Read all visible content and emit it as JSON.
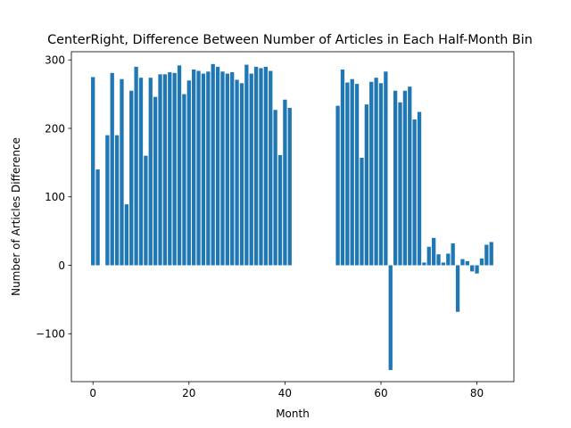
{
  "chart_data": {
    "type": "bar",
    "title": "CenterRight, Difference Between Number of Articles in Each Half-Month Bin",
    "xlabel": "Month",
    "ylabel": "Number of Articles Difference",
    "xlim": [
      -4.5,
      87.7
    ],
    "ylim": [
      -170,
      312
    ],
    "xticks": [
      0,
      20,
      40,
      60,
      80
    ],
    "yticks": [
      -100,
      0,
      100,
      200,
      300
    ],
    "ytick_labels": [
      "−100",
      "0",
      "100",
      "200",
      "300"
    ],
    "bar_color": "#1f77b4",
    "grid": false,
    "x": [
      0,
      1,
      3,
      4,
      5,
      6,
      7,
      8,
      9,
      10,
      11,
      12,
      13,
      14,
      15,
      16,
      17,
      18,
      19,
      20,
      21,
      22,
      23,
      24,
      25,
      26,
      27,
      28,
      29,
      30,
      31,
      32,
      33,
      34,
      35,
      36,
      37,
      38,
      39,
      40,
      41,
      51,
      52,
      53,
      54,
      55,
      56,
      57,
      58,
      59,
      60,
      61,
      62,
      63,
      64,
      65,
      66,
      67,
      68,
      69,
      70,
      71,
      72,
      73,
      74,
      75,
      76,
      77,
      78,
      79,
      80,
      81,
      82,
      83
    ],
    "values": [
      275,
      140,
      190,
      281,
      190,
      272,
      89,
      255,
      290,
      274,
      160,
      274,
      246,
      279,
      279,
      282,
      281,
      292,
      250,
      270,
      286,
      284,
      280,
      283,
      294,
      290,
      283,
      280,
      282,
      271,
      266,
      293,
      280,
      290,
      288,
      290,
      284,
      227,
      161,
      242,
      230,
      233,
      286,
      267,
      272,
      265,
      157,
      235,
      268,
      274,
      266,
      283,
      -153,
      255,
      238,
      255,
      261,
      213,
      224,
      4,
      27,
      40,
      16,
      4,
      17,
      32,
      -68,
      9,
      6,
      -9,
      -12,
      10,
      30,
      34
    ]
  }
}
